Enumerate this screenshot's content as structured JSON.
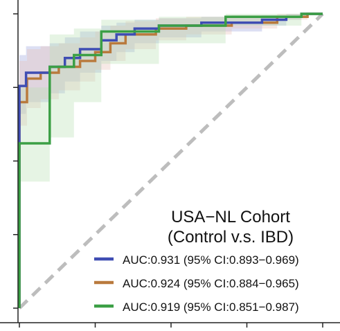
{
  "chart_data": {
    "type": "line",
    "title": "USA−NL Cohort",
    "subtitle": "(Control v.s. IBD)",
    "xlabel": "",
    "ylabel": "",
    "xlim": [
      0,
      1
    ],
    "ylim": [
      0,
      1
    ],
    "grid": false,
    "legend_position": "bottom-right",
    "diagonal": {
      "x": [
        0,
        1
      ],
      "y": [
        0,
        1
      ],
      "style": "dashed",
      "color": "#bdbdbd"
    },
    "series": [
      {
        "name": "AUC:0.931 (95% CI:0.893−0.969)",
        "color": "#3f4db3",
        "band_color": "#9aa3dc",
        "x": [
          0,
          0,
          0.022,
          0.022,
          0.1,
          0.1,
          0.15,
          0.15,
          0.2,
          0.2,
          0.27,
          0.27,
          0.32,
          0.32,
          0.38,
          0.38,
          0.46,
          0.46,
          0.6,
          0.6,
          0.8,
          0.8,
          0.88,
          0.88,
          0.93,
          0.93,
          1
        ],
        "y": [
          0,
          0.755,
          0.755,
          0.8,
          0.8,
          0.82,
          0.82,
          0.85,
          0.85,
          0.88,
          0.88,
          0.91,
          0.91,
          0.93,
          0.93,
          0.95,
          0.95,
          0.96,
          0.96,
          0.97,
          0.97,
          0.98,
          0.98,
          0.99,
          0.99,
          1,
          1
        ],
        "ci_lower": [
          0,
          0.66,
          0.66,
          0.7,
          0.7,
          0.73,
          0.73,
          0.77,
          0.77,
          0.8,
          0.8,
          0.84,
          0.84,
          0.87,
          0.87,
          0.9,
          0.9,
          0.92,
          0.92,
          0.94,
          0.94,
          0.96,
          0.96,
          0.98,
          0.98,
          1,
          1
        ],
        "ci_upper": [
          0,
          0.86,
          0.86,
          0.89,
          0.89,
          0.9,
          0.9,
          0.92,
          0.92,
          0.94,
          0.94,
          0.96,
          0.96,
          0.97,
          0.97,
          0.98,
          0.98,
          0.985,
          0.985,
          0.99,
          0.99,
          0.995,
          0.995,
          1,
          1,
          1,
          1
        ]
      },
      {
        "name": "AUC:0.924 (95% CI:0.884−0.965)",
        "color": "#b97a3d",
        "band_color": "#e7bfb7",
        "x": [
          0,
          0,
          0.025,
          0.025,
          0.07,
          0.07,
          0.13,
          0.13,
          0.2,
          0.2,
          0.25,
          0.25,
          0.3,
          0.3,
          0.35,
          0.35,
          0.45,
          0.45,
          0.55,
          0.55,
          0.7,
          0.7,
          0.85,
          0.85,
          0.95,
          0.95,
          1
        ],
        "y": [
          0,
          0.7,
          0.7,
          0.78,
          0.78,
          0.8,
          0.8,
          0.82,
          0.82,
          0.84,
          0.84,
          0.87,
          0.87,
          0.9,
          0.9,
          0.93,
          0.93,
          0.95,
          0.95,
          0.96,
          0.96,
          0.97,
          0.97,
          0.99,
          0.99,
          1,
          1
        ],
        "ci_lower": [
          0,
          0.62,
          0.62,
          0.68,
          0.68,
          0.71,
          0.71,
          0.74,
          0.74,
          0.77,
          0.77,
          0.81,
          0.81,
          0.84,
          0.84,
          0.88,
          0.88,
          0.91,
          0.91,
          0.93,
          0.93,
          0.95,
          0.95,
          0.98,
          0.98,
          1,
          1
        ],
        "ci_upper": [
          0,
          0.84,
          0.84,
          0.88,
          0.88,
          0.89,
          0.89,
          0.9,
          0.9,
          0.92,
          0.92,
          0.94,
          0.94,
          0.96,
          0.96,
          0.975,
          0.975,
          0.985,
          0.985,
          0.99,
          0.99,
          0.995,
          0.995,
          1,
          1,
          1,
          1
        ]
      },
      {
        "name": "AUC:0.919 (95% CI:0.851−0.987)",
        "color": "#3b9f45",
        "band_color": "#b6e0b3",
        "x": [
          0,
          0,
          0.1,
          0.1,
          0.18,
          0.18,
          0.27,
          0.27,
          0.46,
          0.46,
          0.68,
          0.68,
          0.93,
          0.93,
          1
        ],
        "y": [
          0,
          0.56,
          0.56,
          0.82,
          0.82,
          0.86,
          0.86,
          0.94,
          0.94,
          0.96,
          0.96,
          0.99,
          0.99,
          1,
          1
        ],
        "ci_lower": [
          0,
          0.43,
          0.43,
          0.58,
          0.58,
          0.7,
          0.7,
          0.83,
          0.83,
          0.9,
          0.9,
          0.96,
          0.96,
          1,
          1
        ],
        "ci_upper": [
          0,
          0.75,
          0.75,
          0.93,
          0.93,
          0.95,
          0.95,
          0.98,
          0.98,
          0.99,
          0.99,
          1,
          1,
          1,
          1
        ]
      }
    ]
  }
}
